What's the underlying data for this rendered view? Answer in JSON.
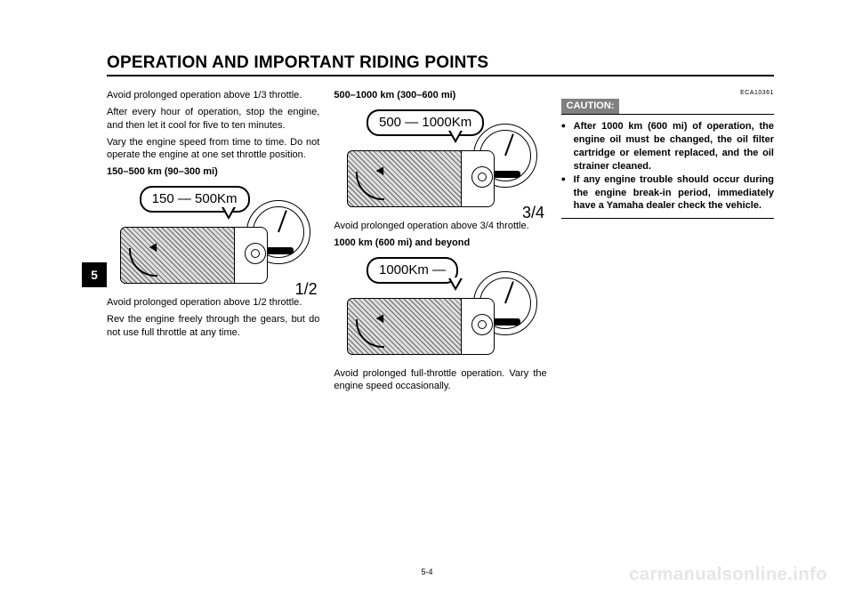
{
  "header": {
    "title": "OPERATION AND IMPORTANT RIDING POINTS"
  },
  "chapter_tab": "5",
  "page_number": "5-4",
  "watermark": "carmanualsonline.info",
  "col1": {
    "p1": "Avoid prolonged operation above 1/3 throttle.",
    "p2": "After every hour of operation, stop the engine, and then let it cool for five to ten minutes.",
    "p3": "Vary the engine speed from time to time. Do not operate the engine at one set throttle position.",
    "h1": "150–500 km (90–300 mi)",
    "fig1": {
      "bubble": "150 — 500Km",
      "label": "1/2"
    },
    "p4": "Avoid prolonged operation above 1/2 throttle.",
    "p5": "Rev the engine freely through the gears, but do not use full throttle at any time."
  },
  "col2": {
    "h1": "500–1000 km (300–600 mi)",
    "fig1": {
      "bubble": "500 — 1000Km",
      "label": "3/4"
    },
    "p1": "Avoid prolonged operation above 3/4 throttle.",
    "h2": "1000 km (600 mi) and beyond",
    "fig2": {
      "bubble": "1000Km —",
      "label": ""
    },
    "p2": "Avoid prolonged full-throttle operation. Vary the engine speed occasionally."
  },
  "col3": {
    "ref": "ECA10361",
    "caution_label": "CAUTION:",
    "bullets": [
      "After 1000 km (600 mi) of operation, the engine oil must be changed, the oil filter cartridge or element replaced, and the oil strainer cleaned.",
      "If any engine trouble should occur during the engine break-in period, immediately have a Yamaha dealer check the vehicle."
    ]
  }
}
